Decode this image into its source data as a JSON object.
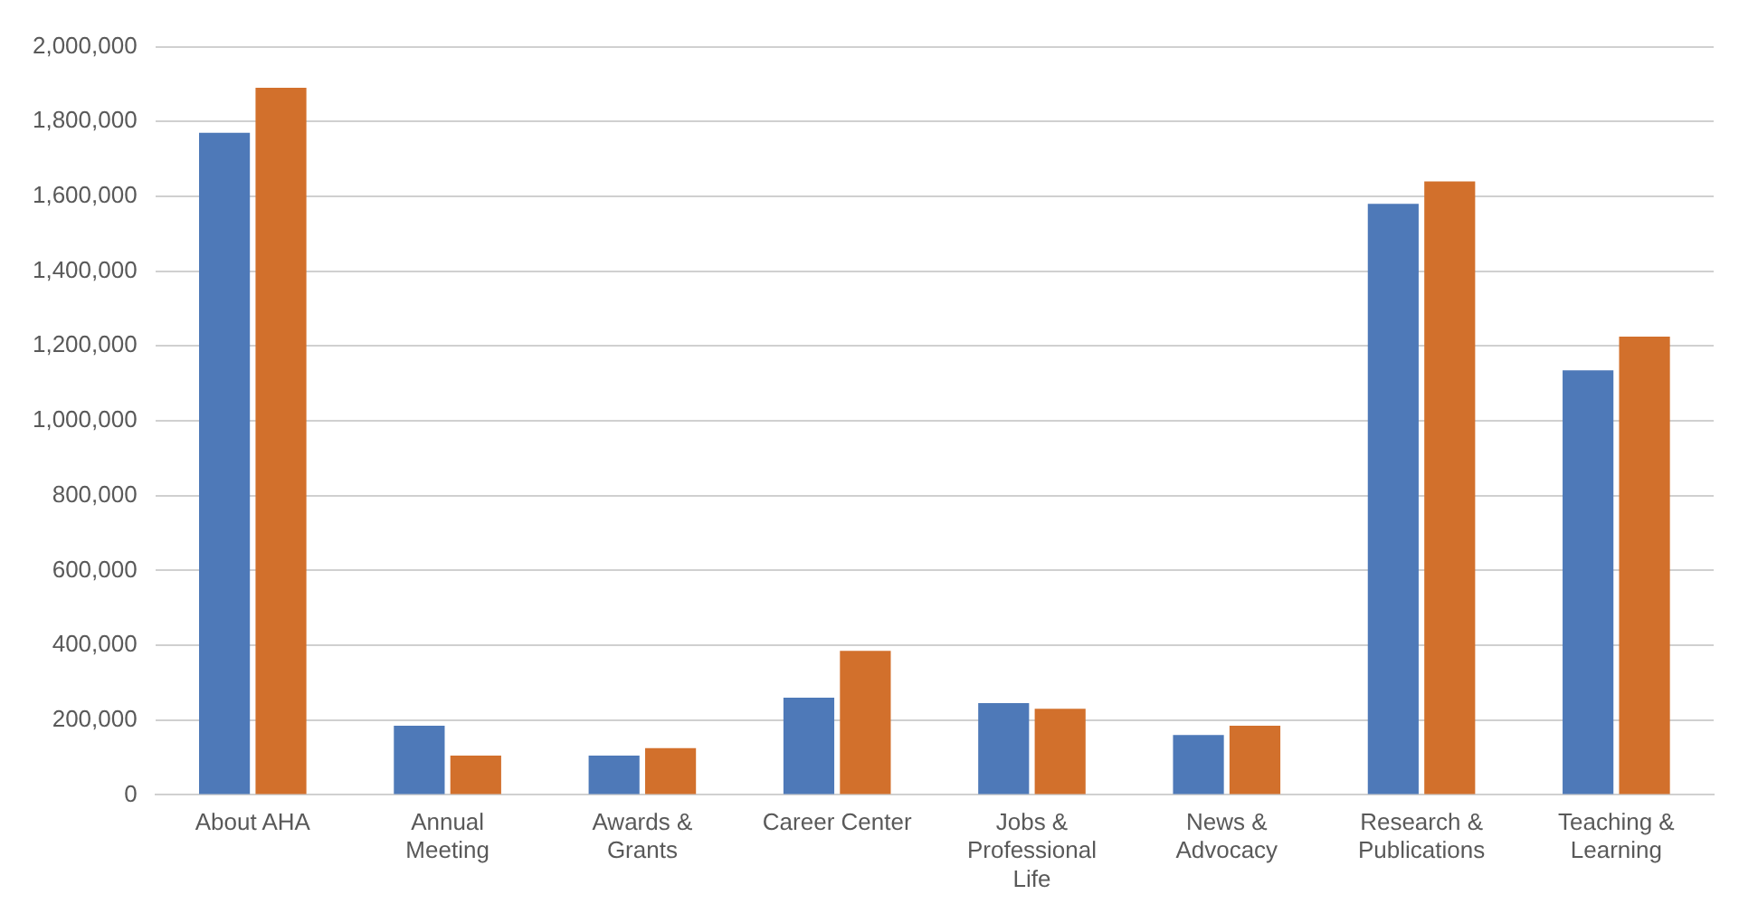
{
  "chart_data": {
    "type": "bar",
    "categories": [
      "About AHA",
      "Annual Meeting",
      "Awards & Grants",
      "Career Center",
      "Jobs & Professional Life",
      "News & Advocacy",
      "Research & Publications",
      "Teaching & Learning"
    ],
    "series": [
      {
        "color": "#4e79b8",
        "values": [
          1770000,
          185000,
          105000,
          260000,
          245000,
          160000,
          1580000,
          1135000
        ]
      },
      {
        "color": "#d2702c",
        "values": [
          1890000,
          105000,
          125000,
          385000,
          230000,
          185000,
          1640000,
          1225000
        ]
      }
    ],
    "ylim": [
      0,
      2000000
    ],
    "yticks": [
      0,
      {
        "value": 200000,
        "label": "200,000"
      },
      {
        "value": 400000,
        "label": "400,000"
      },
      {
        "value": 600000,
        "label": "600,000"
      },
      {
        "value": 800000,
        "label": "800,000"
      },
      {
        "value": 1000000,
        "label": "1,000,000"
      },
      {
        "value": 1200000,
        "label": "1,200,000"
      },
      {
        "value": 1400000,
        "label": "1,400,000"
      },
      {
        "value": 1600000,
        "label": "1,600,000"
      },
      {
        "value": 1800000,
        "label": "1,800,000"
      },
      {
        "value": 2000000,
        "label": "2,000,000"
      }
    ],
    "grid": "y",
    "legend": false
  }
}
